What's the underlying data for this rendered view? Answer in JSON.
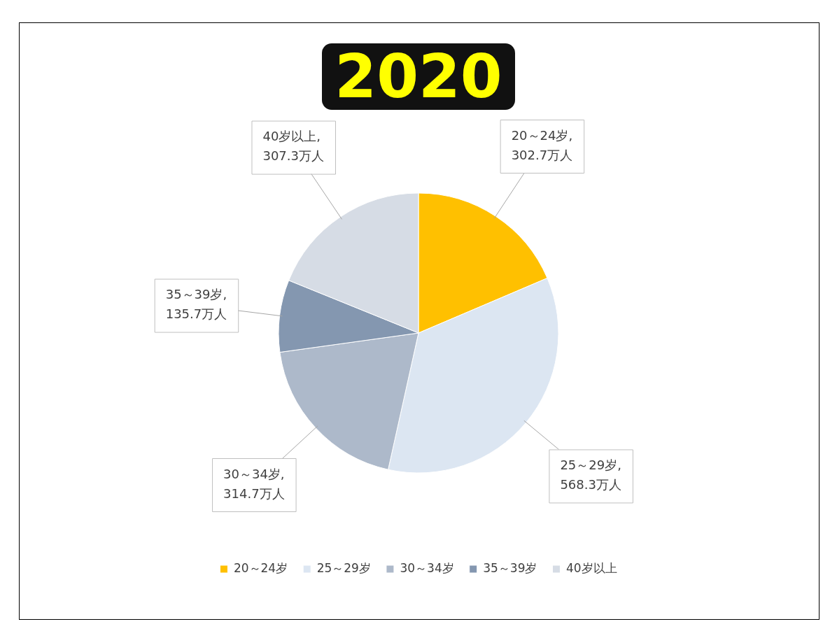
{
  "chart_data": {
    "type": "pie",
    "title": "2020",
    "categories": [
      "20～24岁",
      "25～29岁",
      "30～34岁",
      "35～39岁",
      "40岁以上"
    ],
    "values": [
      302.7,
      568.3,
      314.7,
      135.7,
      307.3
    ],
    "colors": [
      "#ffc000",
      "#dce6f2",
      "#adb9ca",
      "#8497b0",
      "#d6dce5"
    ],
    "value_labels": [
      "20～24岁,\n302.7万人",
      "25～29岁,\n568.3万人",
      "30～34岁,\n314.7万人",
      "35～39岁,\n135.7万人",
      "40岁以上,\n307.3万人"
    ],
    "legend": "bottom"
  }
}
